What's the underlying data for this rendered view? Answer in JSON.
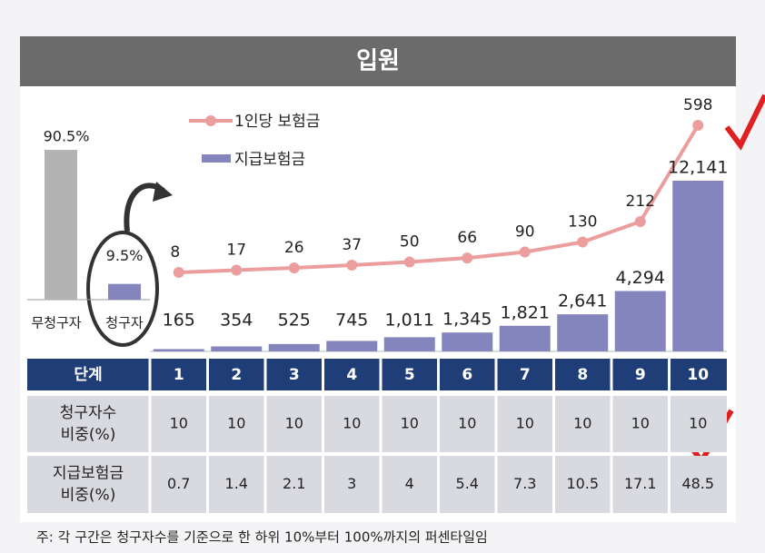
{
  "header": {
    "title": "입원"
  },
  "chart_data": [
    {
      "type": "bar",
      "categories": [
        "무청구자",
        "청구자"
      ],
      "values": [
        90.5,
        9.5
      ],
      "value_labels": [
        "90.5%",
        "9.5%"
      ],
      "colors": [
        "#b3b3b3",
        "#8585bd"
      ]
    },
    {
      "type": "bar-line",
      "categories": [
        "1",
        "2",
        "3",
        "4",
        "5",
        "6",
        "7",
        "8",
        "9",
        "10"
      ],
      "series": [
        {
          "name": "1인당 보험금",
          "type": "line",
          "color": "#ec9d9d",
          "values": [
            8,
            17,
            26,
            37,
            50,
            66,
            90,
            130,
            212,
            598
          ]
        },
        {
          "name": "지급보험금",
          "type": "bar",
          "color": "#8585bd",
          "values": [
            165,
            354,
            525,
            745,
            1011,
            1345,
            1821,
            2641,
            4294,
            12141
          ],
          "value_labels": [
            "165",
            "354",
            "525",
            "745",
            "1,011",
            "1,345",
            "1,821",
            "2,641",
            "4,294",
            "12,141"
          ]
        }
      ]
    }
  ],
  "table": {
    "header_label": "단계",
    "rows": [
      {
        "label": [
          "청구자수",
          "비중(%)"
        ],
        "values": [
          10,
          10,
          10,
          10,
          10,
          10,
          10,
          10,
          10,
          10
        ]
      },
      {
        "label": [
          "지급보험금",
          "비중(%)"
        ],
        "values": [
          0.7,
          1.4,
          2.1,
          3.0,
          4.0,
          5.4,
          7.3,
          10.5,
          17.1,
          48.5
        ]
      }
    ]
  },
  "footnote": "주: 각 구간은 청구자수를 기준으로 한 하위 10%부터 100%까지의 퍼센타일임"
}
